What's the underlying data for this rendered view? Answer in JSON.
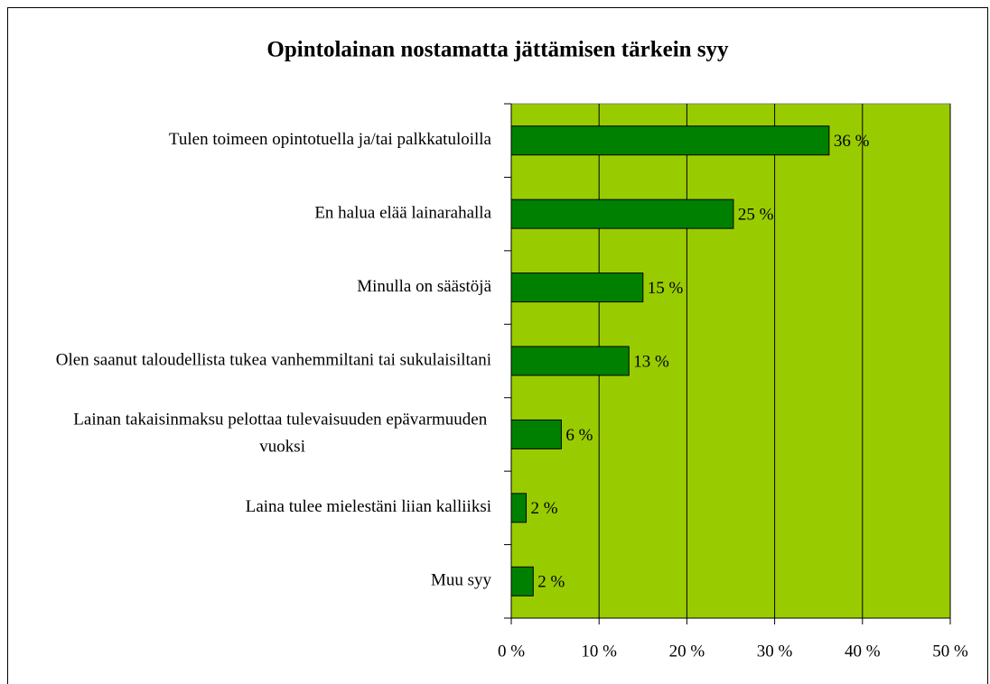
{
  "chart_data": {
    "type": "bar",
    "orientation": "horizontal",
    "title": "Opintolainan nostamatta jättämisen tärkein syy",
    "categories": [
      "Tulen toimeen opintotuella ja/tai palkkatuloilla",
      "En halua elää lainarahalla",
      "Minulla on säästöjä",
      "Olen saanut taloudellista tukea vanhemmiltani tai sukulaisiltani",
      "Lainan takaisinmaksu pelottaa tulevaisuuden epävarmuuden vuoksi",
      "Laina tulee mielestäni liian kalliiksi",
      "Muu syy"
    ],
    "values": [
      36.2,
      25.3,
      15.0,
      13.4,
      5.7,
      1.7,
      2.5
    ],
    "value_labels": [
      "36 %",
      "25 %",
      "15 %",
      "13 %",
      "6 %",
      "2 %",
      "2 %"
    ],
    "color": "#008000",
    "background": "#99cc00",
    "xlim": [
      0,
      50
    ],
    "xticks": [
      {
        "value": 0,
        "label": "0 %"
      },
      {
        "value": 10,
        "label": "10 %"
      },
      {
        "value": 20,
        "label": "20 %"
      },
      {
        "value": 30,
        "label": "30 %"
      },
      {
        "value": 40,
        "label": "40 %"
      },
      {
        "value": 50,
        "label": "50 %"
      }
    ],
    "grid": true
  }
}
